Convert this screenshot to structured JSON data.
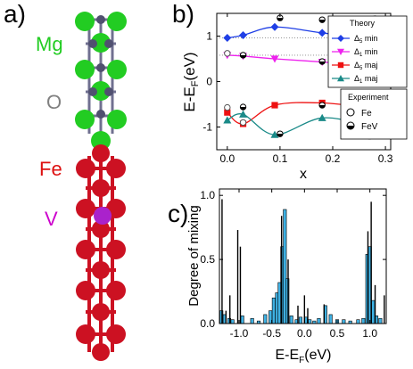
{
  "panels": {
    "a": "a)",
    "b": "b)",
    "c": "c)"
  },
  "structure": {
    "labels": [
      {
        "text": "Mg",
        "color": "#22cc22"
      },
      {
        "text": "O",
        "color": "#808080"
      },
      {
        "text": "Fe",
        "color": "#dd1111"
      },
      {
        "text": "V",
        "color": "#cc00cc"
      }
    ],
    "atom_colors": {
      "Mg": "#22cc22",
      "O": "#505070",
      "Fe": "#cc1122",
      "V": "#aa22cc"
    }
  },
  "chart_data": [
    {
      "id": "b",
      "type": "line",
      "xlabel": "x",
      "ylabel": "E-E",
      "ylabel_sub": "F",
      "ylabel_unit": "(eV)",
      "xlim": [
        -0.02,
        0.31
      ],
      "ylim": [
        -1.5,
        1.5
      ],
      "xticks": [
        "0.0",
        "0.1",
        "0.2",
        "0.3"
      ],
      "yticks": [
        "-1",
        "0",
        "1"
      ],
      "legend_theory": {
        "title": "Theory",
        "entries": [
          {
            "pre": "Δ",
            "sub": "5",
            "post": " min",
            "color": "#1f3fe6",
            "marker": "diamond"
          },
          {
            "pre": "Δ",
            "sub": "1",
            "post": " min",
            "color": "#ee22ee",
            "marker": "triangle-down"
          },
          {
            "pre": "Δ",
            "sub": "5",
            "post": " maj",
            "color": "#ee1111",
            "marker": "square"
          },
          {
            "pre": "Δ",
            "sub": "1",
            "post": " maj",
            "color": "#1a8a88",
            "marker": "triangle-up"
          }
        ]
      },
      "legend_experiment": {
        "title": "Experiment",
        "entries": [
          {
            "label": "Fe",
            "marker": "open-circle"
          },
          {
            "label": "FeV",
            "marker": "half-circle"
          }
        ]
      },
      "series": [
        {
          "color": "#1f3fe6",
          "marker": "diamond",
          "x": [
            0.0,
            0.03,
            0.09,
            0.18,
            0.27
          ],
          "y": [
            0.96,
            1.02,
            1.2,
            1.07,
            0.97
          ]
        },
        {
          "color": "#ee22ee",
          "marker": "triangle-down",
          "x": [
            0.0,
            0.03,
            0.09,
            0.18,
            0.27
          ],
          "y": [
            0.58,
            0.56,
            0.5,
            0.43,
            0.35
          ]
        },
        {
          "color": "#ee1111",
          "marker": "square",
          "x": [
            0.0,
            0.03,
            0.09,
            0.18,
            0.27
          ],
          "y": [
            -0.68,
            -0.93,
            -0.52,
            -0.47,
            -0.58
          ]
        },
        {
          "color": "#1a8a88",
          "marker": "triangle-up",
          "x": [
            0.0,
            0.03,
            0.09,
            0.18,
            0.27
          ],
          "y": [
            -0.85,
            -0.72,
            -1.17,
            -0.8,
            -0.98
          ]
        }
      ],
      "experiment_points": [
        {
          "kind": "fe",
          "x": 0.0,
          "y": 0.62
        },
        {
          "kind": "fe",
          "x": 0.0,
          "y": -0.57
        },
        {
          "kind": "fe",
          "x": 0.03,
          "y": -0.9
        },
        {
          "kind": "fev",
          "x": 0.03,
          "y": 0.58
        },
        {
          "kind": "fev",
          "x": 0.03,
          "y": -0.56
        },
        {
          "kind": "fev",
          "x": 0.1,
          "y": 1.4
        },
        {
          "kind": "fev",
          "x": 0.1,
          "y": -1.15
        },
        {
          "kind": "fev",
          "x": 0.18,
          "y": 0.44
        },
        {
          "kind": "fev",
          "x": 0.18,
          "y": 1.36
        },
        {
          "kind": "fev",
          "x": 0.18,
          "y": -0.52
        },
        {
          "kind": "fev",
          "x": 0.27,
          "y": 0.28
        },
        {
          "kind": "fev",
          "x": 0.27,
          "y": -1.2
        },
        {
          "kind": "fev",
          "x": 0.28,
          "y": 1.38
        }
      ],
      "reference_lines": [
        0.96,
        0.58
      ]
    },
    {
      "id": "c",
      "type": "bar",
      "xlabel": "E-E",
      "xlabel_sub": "F",
      "xlabel_unit": "(eV)",
      "ylabel": "Degree of mixing",
      "xlim": [
        -1.3,
        1.25
      ],
      "ylim": [
        0,
        1.05
      ],
      "xticks": [
        "-1.0",
        "-0.5",
        "0.0",
        "0.5",
        "1.0"
      ],
      "yticks": [
        "0.0",
        "0.5",
        "1.0"
      ],
      "bar_color": "#3fb1e3",
      "bars": [
        {
          "x": -1.27,
          "v": 0.1
        },
        {
          "x": -1.22,
          "v": 0.07
        },
        {
          "x": -1.15,
          "v": 0.04
        },
        {
          "x": -1.1,
          "v": 0.03
        },
        {
          "x": -0.95,
          "v": 0.06
        },
        {
          "x": -0.8,
          "v": 0.04
        },
        {
          "x": -0.7,
          "v": 0.02
        },
        {
          "x": -0.6,
          "v": 0.07
        },
        {
          "x": -0.52,
          "v": 0.1
        },
        {
          "x": -0.47,
          "v": 0.2
        },
        {
          "x": -0.42,
          "v": 0.24
        },
        {
          "x": -0.38,
          "v": 0.32
        },
        {
          "x": -0.34,
          "v": 0.6
        },
        {
          "x": -0.3,
          "v": 0.89
        },
        {
          "x": -0.26,
          "v": 0.35
        },
        {
          "x": -0.2,
          "v": 0.06
        },
        {
          "x": -0.12,
          "v": 0.03
        },
        {
          "x": -0.06,
          "v": 0.05
        },
        {
          "x": 0.02,
          "v": 0.05
        },
        {
          "x": 0.08,
          "v": 0.03
        },
        {
          "x": 0.15,
          "v": 0.02
        },
        {
          "x": 0.22,
          "v": 0.04
        },
        {
          "x": 0.32,
          "v": 0.14
        },
        {
          "x": 0.4,
          "v": 0.07
        },
        {
          "x": 0.5,
          "v": 0.03
        },
        {
          "x": 0.6,
          "v": 0.03
        },
        {
          "x": 0.7,
          "v": 0.02
        },
        {
          "x": 0.82,
          "v": 0.03
        },
        {
          "x": 0.9,
          "v": 0.04
        },
        {
          "x": 0.96,
          "v": 0.54
        },
        {
          "x": 1.0,
          "v": 0.6
        },
        {
          "x": 1.05,
          "v": 0.18
        },
        {
          "x": 1.1,
          "v": 0.06
        },
        {
          "x": 1.16,
          "v": 0.04
        }
      ],
      "spikes": [
        {
          "x": -1.26,
          "v": 0.97
        },
        {
          "x": -1.2,
          "v": 0.1
        },
        {
          "x": -1.14,
          "v": 0.22
        },
        {
          "x": -1.02,
          "v": 0.73
        },
        {
          "x": -0.98,
          "v": 0.6
        },
        {
          "x": -0.35,
          "v": 0.84
        },
        {
          "x": -0.25,
          "v": 0.5
        },
        {
          "x": -0.1,
          "v": 0.14
        },
        {
          "x": 0.0,
          "v": 0.22
        },
        {
          "x": 0.05,
          "v": 0.12
        },
        {
          "x": 0.3,
          "v": 0.15
        },
        {
          "x": 0.97,
          "v": 0.72
        },
        {
          "x": 1.02,
          "v": 0.95
        },
        {
          "x": 1.08,
          "v": 0.3
        },
        {
          "x": 1.22,
          "v": 0.22
        }
      ]
    }
  ]
}
